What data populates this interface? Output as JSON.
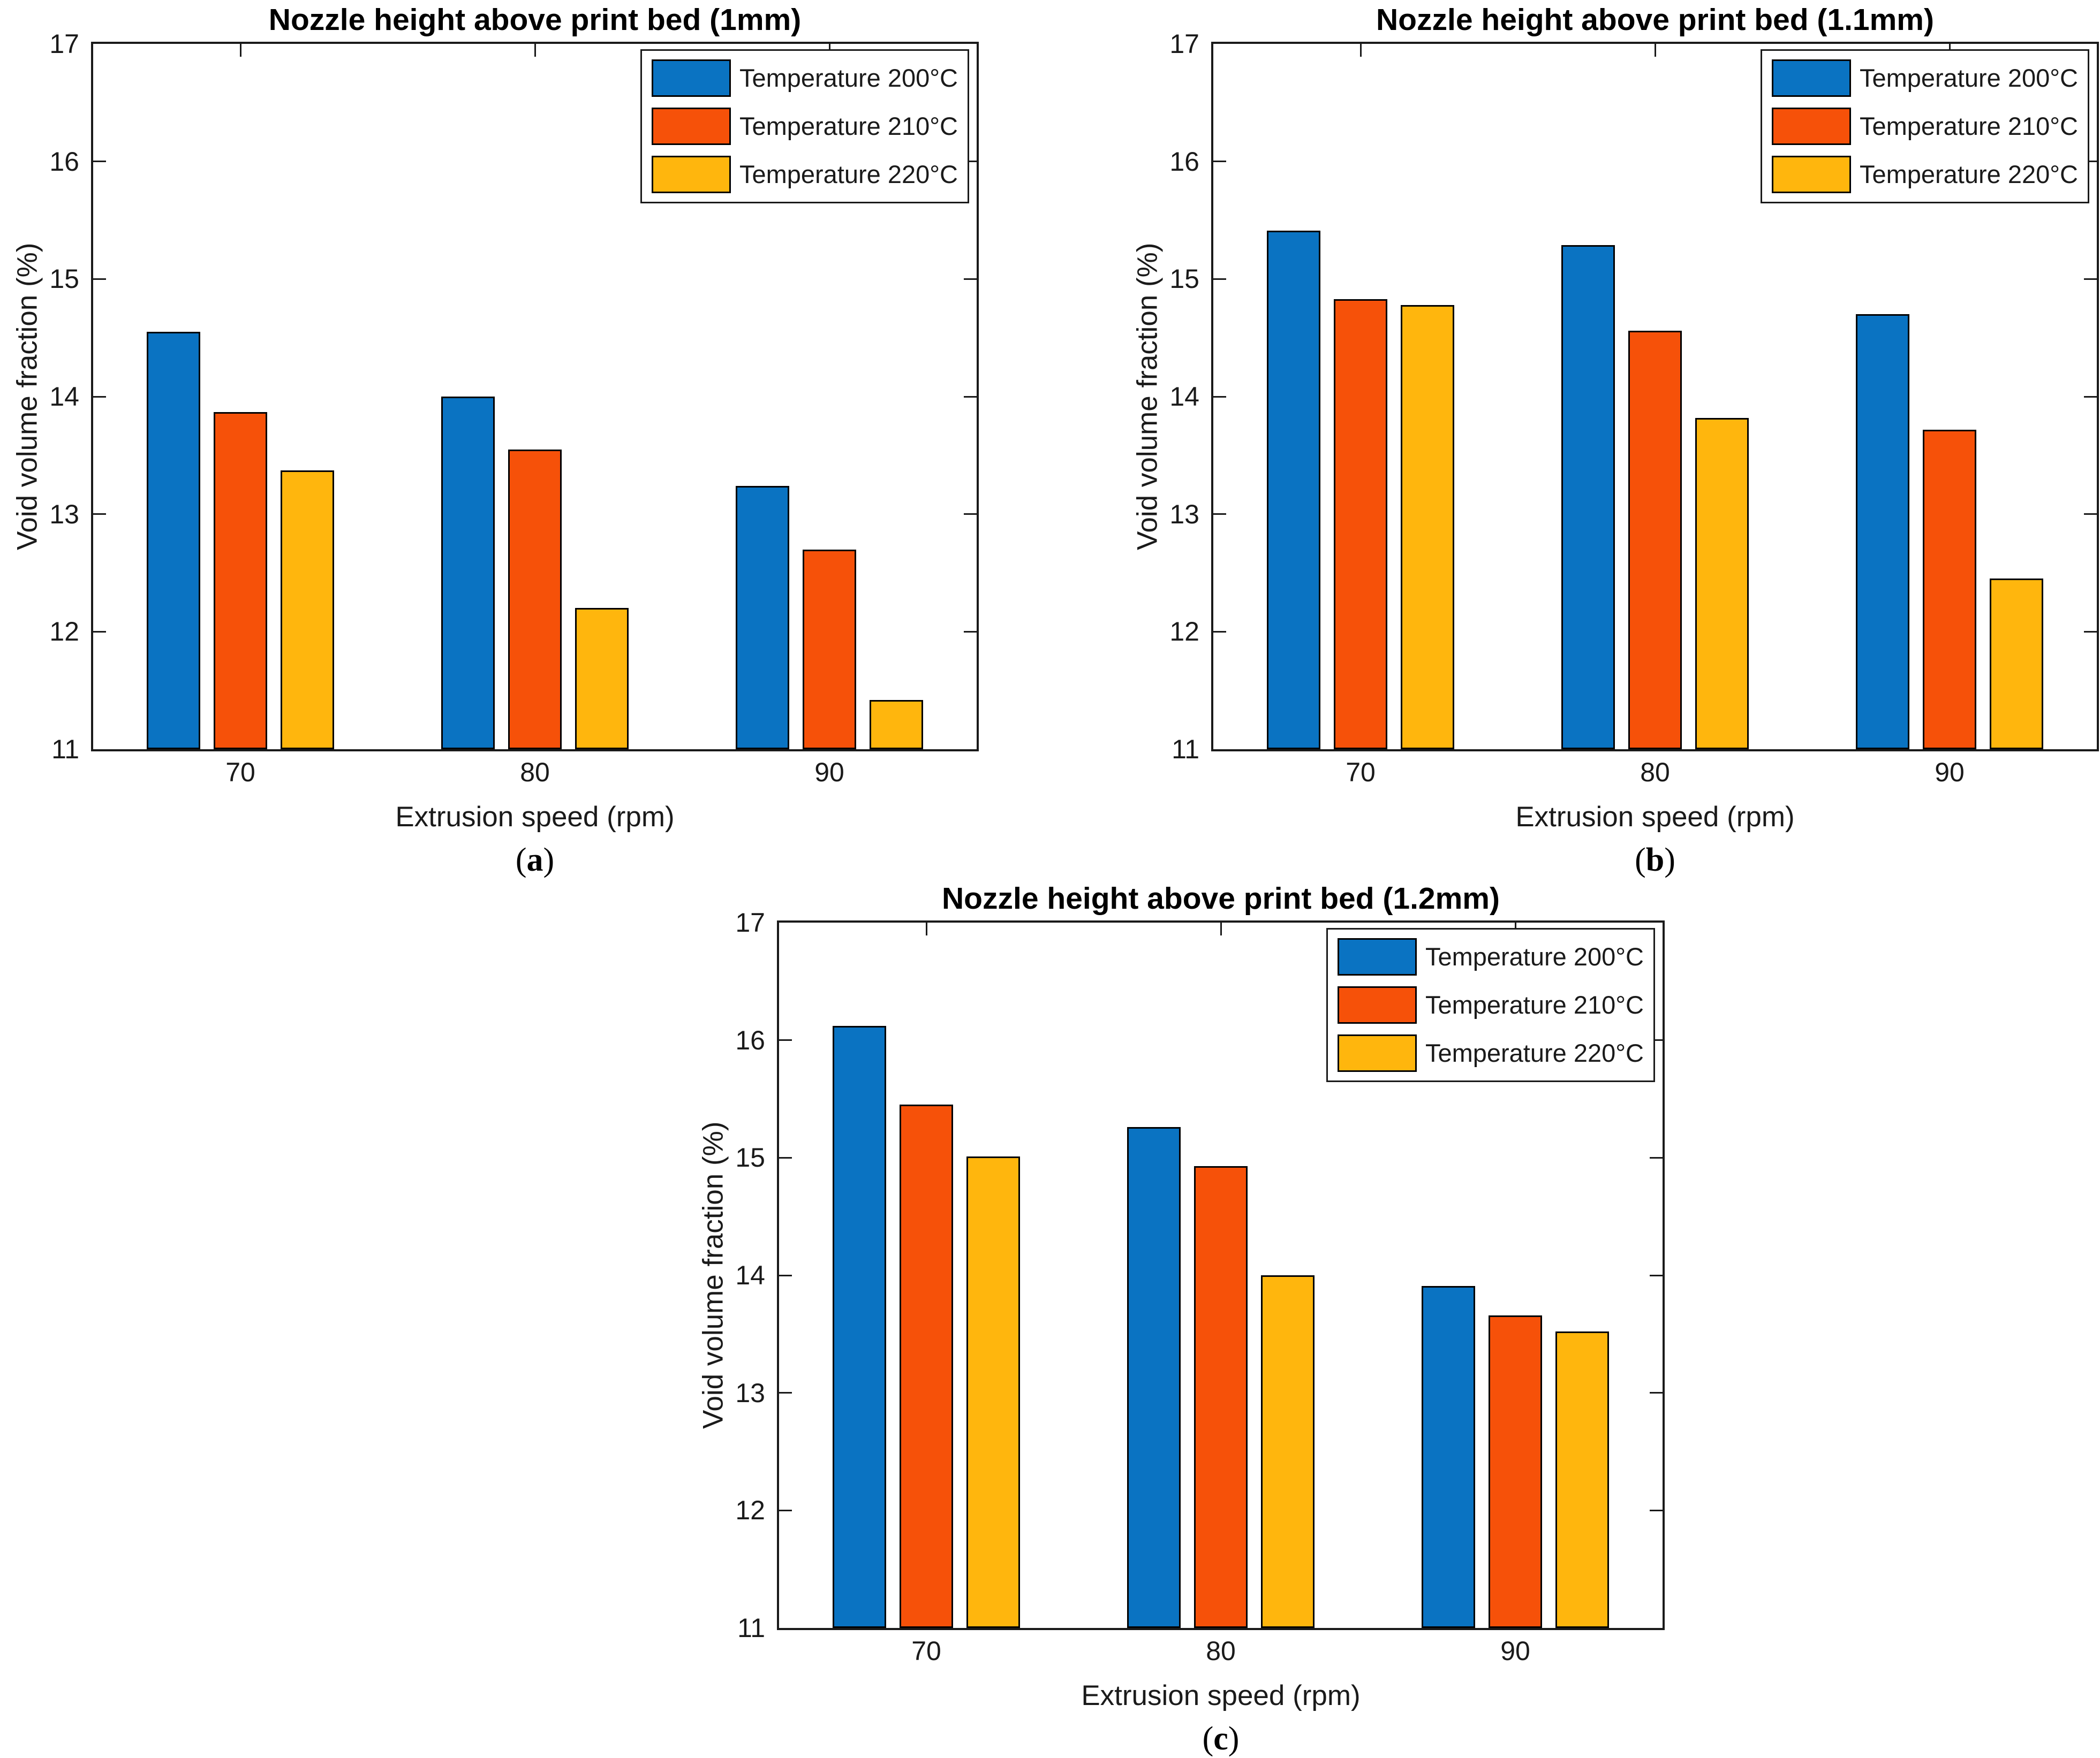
{
  "figure": {
    "background": "#ffffff"
  },
  "colors": {
    "series1": "#0a73c2",
    "series2": "#f65109",
    "series3": "#ffb60d",
    "axis": "#1a1a1a"
  },
  "chart_data": [
    {
      "type": "bar",
      "title": "Nozzle height above print bed (1mm)",
      "xlabel": "Extrusion speed (rpm)",
      "ylabel": "Void volume fraction (%)",
      "ylim": [
        11,
        17
      ],
      "yticks": [
        11,
        12,
        13,
        14,
        15,
        16,
        17
      ],
      "categories": [
        "70",
        "80",
        "90"
      ],
      "grid": false,
      "legend_position": "top-right-inside",
      "caption": {
        "prefix": "(",
        "letter": "a",
        "suffix": ")"
      },
      "series": [
        {
          "name": "Temperature 200°C",
          "color_key": "series1",
          "values": [
            14.55,
            14.0,
            13.24
          ]
        },
        {
          "name": "Temperature 210°C",
          "color_key": "series2",
          "values": [
            13.87,
            13.55,
            12.7
          ]
        },
        {
          "name": "Temperature 220°C",
          "color_key": "series3",
          "values": [
            13.37,
            12.2,
            11.42
          ]
        }
      ]
    },
    {
      "type": "bar",
      "title": "Nozzle height above print bed (1.1mm)",
      "xlabel": "Extrusion speed (rpm)",
      "ylabel": "Void volume fraction (%)",
      "ylim": [
        11,
        17
      ],
      "yticks": [
        11,
        12,
        13,
        14,
        15,
        16,
        17
      ],
      "categories": [
        "70",
        "80",
        "90"
      ],
      "grid": false,
      "legend_position": "top-right-inside",
      "caption": {
        "prefix": "(",
        "letter": "b",
        "suffix": ")"
      },
      "series": [
        {
          "name": "Temperature 200°C",
          "color_key": "series1",
          "values": [
            15.41,
            15.29,
            14.7
          ]
        },
        {
          "name": "Temperature 210°C",
          "color_key": "series2",
          "values": [
            14.83,
            14.56,
            13.72
          ]
        },
        {
          "name": "Temperature 220°C",
          "color_key": "series3",
          "values": [
            14.78,
            13.82,
            12.45
          ]
        }
      ]
    },
    {
      "type": "bar",
      "title": "Nozzle height above print bed (1.2mm)",
      "xlabel": "Extrusion speed (rpm)",
      "ylabel": "Void volume fraction (%)",
      "ylim": [
        11,
        17
      ],
      "yticks": [
        11,
        12,
        13,
        14,
        15,
        16,
        17
      ],
      "categories": [
        "70",
        "80",
        "90"
      ],
      "grid": false,
      "legend_position": "top-right-inside",
      "caption": {
        "prefix": "(",
        "letter": "c",
        "suffix": ")"
      },
      "series": [
        {
          "name": "Temperature 200°C",
          "color_key": "series1",
          "values": [
            16.12,
            15.26,
            13.91
          ]
        },
        {
          "name": "Temperature 210°C",
          "color_key": "series2",
          "values": [
            15.45,
            14.93,
            13.66
          ]
        },
        {
          "name": "Temperature 220°C",
          "color_key": "series3",
          "values": [
            15.01,
            14.0,
            13.52
          ]
        }
      ]
    }
  ]
}
